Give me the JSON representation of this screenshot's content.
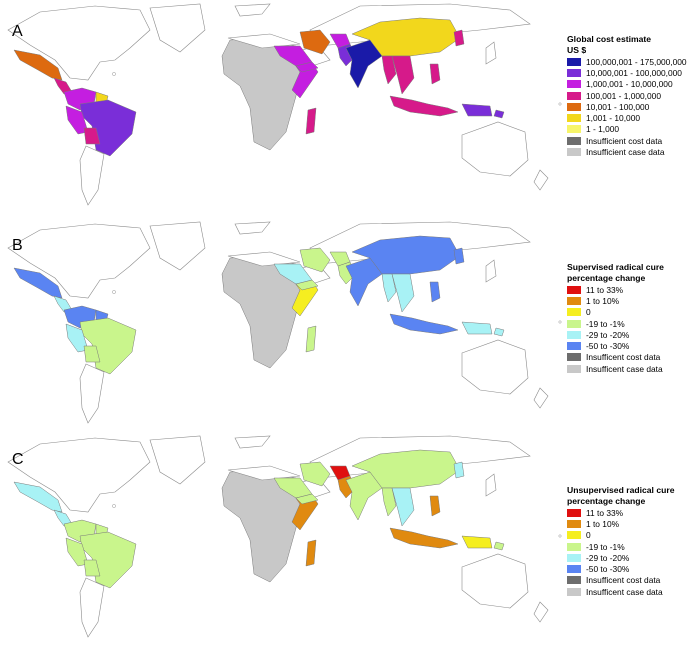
{
  "panels": [
    {
      "letter": "A",
      "legend": {
        "title_lines": [
          "Global cost estimate",
          "US $"
        ],
        "items": [
          {
            "label": "100,000,001 - 175,000,000",
            "color": "#1a1aa8"
          },
          {
            "label": "10,000,001 - 100,000,000",
            "color": "#7a2ed8"
          },
          {
            "label": "1,000,001 - 10,000,000",
            "color": "#c41ee0"
          },
          {
            "label": "100,001 - 1,000,000",
            "color": "#d61a8a"
          },
          {
            "label": "10,001 - 100,000",
            "color": "#dd6a10"
          },
          {
            "label": "1,001 - 10,000",
            "color": "#f2d71c"
          },
          {
            "label": "1 - 1,000",
            "color": "#f7f56a"
          },
          {
            "label": "Insufficient cost data",
            "color": "#6d6d6d"
          },
          {
            "label": "Insufficient case data",
            "color": "#c8c8c8"
          }
        ]
      }
    },
    {
      "letter": "B",
      "legend": {
        "title_lines": [
          "Supervised radical cure",
          "percentage change"
        ],
        "items": [
          {
            "label": "11 to 33%",
            "color": "#e01010"
          },
          {
            "label": "1 to 10%",
            "color": "#e08a10"
          },
          {
            "label": "0",
            "color": "#f5ee20"
          },
          {
            "label": "-19 to -1%",
            "color": "#c9f58c"
          },
          {
            "label": "-29 to -20%",
            "color": "#a8f2f5"
          },
          {
            "label": "-50 to -30%",
            "color": "#5a84f2"
          },
          {
            "label": "Insufficent cost data",
            "color": "#6d6d6d"
          },
          {
            "label": "Insufficent case data",
            "color": "#c8c8c8"
          }
        ]
      }
    },
    {
      "letter": "C",
      "legend": {
        "title_lines": [
          "Unsupervised radical cure",
          "percentage change"
        ],
        "items": [
          {
            "label": "11 to 33%",
            "color": "#e01010"
          },
          {
            "label": "1 to 10%",
            "color": "#e08a10"
          },
          {
            "label": "0",
            "color": "#f5ee20"
          },
          {
            "label": "-19 to -1%",
            "color": "#c9f58c"
          },
          {
            "label": "-29 to -20%",
            "color": "#a8f2f5"
          },
          {
            "label": "-50 to -30%",
            "color": "#5a84f2"
          },
          {
            "label": "Insufficent cost data",
            "color": "#6d6d6d"
          },
          {
            "label": "Insufficent case data",
            "color": "#c8c8c8"
          }
        ]
      }
    }
  ],
  "region_colors": {
    "A": {
      "mexico": "#dd6a10",
      "central_america": "#d61a8a",
      "colombia_venezuela": "#c41ee0",
      "brazil": "#7a2ed8",
      "peru": "#c41ee0",
      "bolivia": "#d61a8a",
      "guianas": "#f2d71c",
      "africa": "#c8c8c8",
      "horn": "#c41ee0",
      "saudi": "#c41ee0",
      "yemen": "#c41ee0",
      "iran": "#dd6a10",
      "afghanistan": "#c41ee0",
      "pakistan": "#7a2ed8",
      "india": "#1a1aa8",
      "china": "#f2d71c",
      "korea": "#d61a8a",
      "myanmar": "#d61a8a",
      "indochina": "#d61a8a",
      "indonesia": "#d61a8a",
      "png": "#7a2ed8",
      "solomon": "#7a2ed8",
      "madagascar": "#d61a8a",
      "philippines": "#d61a8a"
    },
    "B": {
      "mexico": "#5a84f2",
      "central_america": "#a8f2f5",
      "colombia_venezuela": "#5a84f2",
      "brazil": "#c9f58c",
      "peru": "#a8f2f5",
      "bolivia": "#c9f58c",
      "guianas": "#5a84f2",
      "africa": "#c8c8c8",
      "horn": "#f5ee20",
      "saudi": "#a8f2f5",
      "yemen": "#c9f58c",
      "iran": "#c9f58c",
      "afghanistan": "#c9f58c",
      "pakistan": "#c9f58c",
      "india": "#5a84f2",
      "china": "#5a84f2",
      "korea": "#5a84f2",
      "myanmar": "#a8f2f5",
      "indochina": "#a8f2f5",
      "indonesia": "#5a84f2",
      "png": "#a8f2f5",
      "solomon": "#a8f2f5",
      "madagascar": "#c9f58c",
      "philippines": "#5a84f2"
    },
    "C": {
      "mexico": "#a8f2f5",
      "central_america": "#a8f2f5",
      "colombia_venezuela": "#c9f58c",
      "brazil": "#c9f58c",
      "peru": "#c9f58c",
      "bolivia": "#c9f58c",
      "guianas": "#c9f58c",
      "africa": "#c8c8c8",
      "horn": "#e08a10",
      "saudi": "#c9f58c",
      "yemen": "#c9f58c",
      "iran": "#c9f58c",
      "afghanistan": "#e01010",
      "pakistan": "#e08a10",
      "india": "#c9f58c",
      "china": "#c9f58c",
      "korea": "#a8f2f5",
      "myanmar": "#c9f58c",
      "indochina": "#a8f2f5",
      "indonesia": "#e08a10",
      "png": "#f5ee20",
      "solomon": "#c9f58c",
      "madagascar": "#e08a10",
      "philippines": "#e08a10"
    }
  }
}
